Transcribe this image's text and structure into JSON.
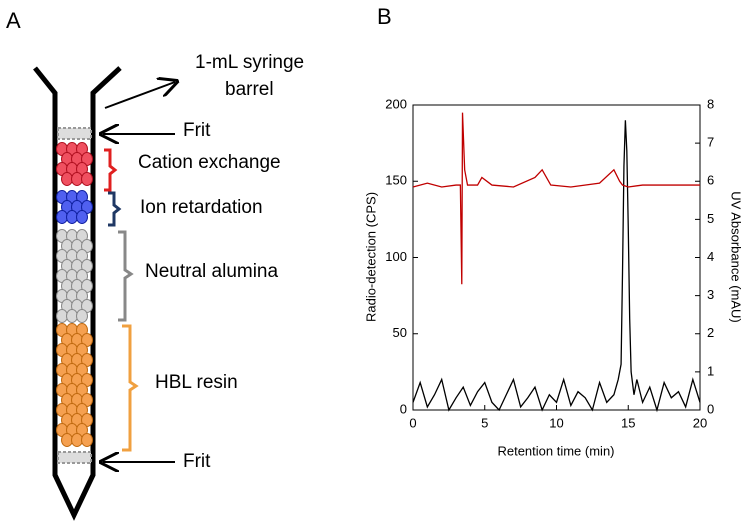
{
  "panel_a": {
    "label": "A",
    "syringe_label": [
      "1-mL syringe",
      "barrel"
    ],
    "top_frit": "Frit",
    "layers": [
      "Cation exchange",
      "Ion retardation",
      "Neutral alumina",
      "HBL resin"
    ],
    "bottom_frit": "Frit"
  },
  "chart_data": {
    "type": "line",
    "panel_label": "B",
    "xlabel": "Retention time (min)",
    "ylabel": "Radio-detection (CPS)",
    "y2label": "UV Absorbance (mAU)",
    "xlim": [
      0,
      20
    ],
    "xticks": [
      0,
      5,
      10,
      15,
      20
    ],
    "ylim": [
      0,
      200
    ],
    "yticks": [
      0,
      50,
      100,
      150,
      200
    ],
    "y2lim": [
      0,
      8
    ],
    "y2ticks": [
      0,
      1,
      2,
      3,
      4,
      5,
      6,
      7,
      8
    ],
    "series": [
      {
        "color": "#000000",
        "x": [
          0,
          0.5,
          1,
          1.5,
          2,
          2.5,
          3,
          3.5,
          4,
          4.5,
          5,
          5.5,
          6,
          6.5,
          7,
          7.5,
          8,
          8.5,
          9,
          9.5,
          10,
          10.5,
          11,
          11.5,
          12,
          12.5,
          13,
          13.5,
          14,
          14.3,
          14.5,
          14.6,
          14.7,
          14.8,
          14.9,
          15,
          15.1,
          15.2,
          15.4,
          15.6,
          16,
          16.5,
          17,
          17.5,
          18,
          18.5,
          19,
          19.5,
          20
        ],
        "values": [
          5,
          18,
          2,
          10,
          20,
          0,
          8,
          15,
          3,
          12,
          18,
          5,
          0,
          10,
          20,
          2,
          8,
          15,
          0,
          10,
          5,
          20,
          3,
          12,
          8,
          0,
          18,
          5,
          10,
          20,
          30,
          90,
          160,
          190,
          170,
          120,
          60,
          25,
          10,
          20,
          5,
          15,
          0,
          18,
          8,
          12,
          2,
          20,
          5
        ]
      },
      {
        "color": "#c00000",
        "axis": "y2",
        "x": [
          0,
          1,
          2,
          3,
          3.3,
          3.4,
          3.45,
          3.6,
          3.8,
          4.5,
          4.8,
          5.5,
          7,
          8.5,
          9,
          9.6,
          11,
          13,
          14,
          14.4,
          14.6,
          15,
          16,
          18,
          20
        ],
        "values": [
          5.85,
          5.95,
          5.85,
          5.9,
          5.9,
          3.3,
          7.8,
          6.3,
          5.9,
          5.9,
          6.1,
          5.9,
          5.85,
          6.1,
          6.3,
          5.9,
          5.85,
          5.95,
          6.3,
          6.0,
          5.9,
          5.85,
          5.9,
          5.9,
          5.9
        ]
      }
    ]
  }
}
